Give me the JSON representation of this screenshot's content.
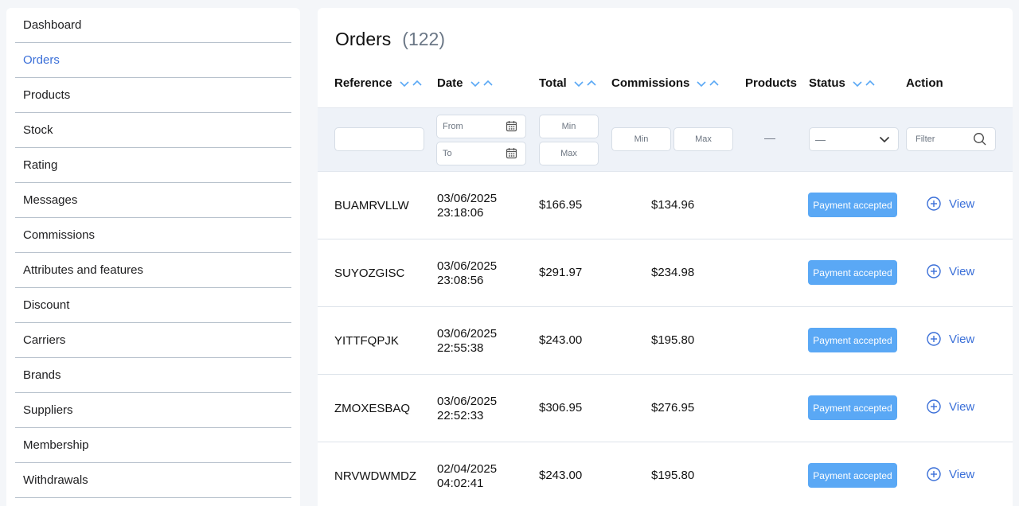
{
  "sidebar": {
    "items": [
      {
        "label": "Dashboard"
      },
      {
        "label": "Orders",
        "active": true
      },
      {
        "label": "Products"
      },
      {
        "label": "Stock"
      },
      {
        "label": "Rating"
      },
      {
        "label": "Messages"
      },
      {
        "label": "Commissions"
      },
      {
        "label": "Attributes and features"
      },
      {
        "label": "Discount"
      },
      {
        "label": "Carriers"
      },
      {
        "label": "Brands"
      },
      {
        "label": "Suppliers"
      },
      {
        "label": "Membership"
      },
      {
        "label": "Withdrawals"
      }
    ]
  },
  "orders": {
    "title": "Orders",
    "count": "(122)",
    "columns": {
      "reference": "Reference",
      "date": "Date",
      "total": "Total",
      "commissions": "Commissions",
      "products": "Products",
      "status": "Status",
      "action": "Action"
    },
    "filters": {
      "reference_value": "",
      "date_from_placeholder": "From",
      "date_to_placeholder": "To",
      "total_min": "Min",
      "total_max": "Max",
      "commissions_min": "Min",
      "commissions_max": "Max",
      "products_placeholder": "—",
      "status_selected": "—",
      "action_filter": "Filter"
    },
    "view_label": "View",
    "rows": [
      {
        "reference": "BUAMRVLLW",
        "date": "03/06/2025",
        "time": "23:18:06",
        "total": "$166.95",
        "commissions": "$134.96",
        "status": "Payment accepted"
      },
      {
        "reference": "SUYOZGISC",
        "date": "03/06/2025",
        "time": "23:08:56",
        "total": "$291.97",
        "commissions": "$234.98",
        "status": "Payment accepted"
      },
      {
        "reference": "YITTFQPJK",
        "date": "03/06/2025",
        "time": "22:55:38",
        "total": "$243.00",
        "commissions": "$195.80",
        "status": "Payment accepted"
      },
      {
        "reference": "ZMOXESBAQ",
        "date": "03/06/2025",
        "time": "22:52:33",
        "total": "$306.95",
        "commissions": "$276.95",
        "status": "Payment accepted"
      },
      {
        "reference": "NRVWDWMDZ",
        "date": "02/04/2025",
        "time": "04:02:41",
        "total": "$243.00",
        "commissions": "$195.80",
        "status": "Payment accepted"
      }
    ]
  },
  "colors": {
    "accent": "#3a6fd8",
    "badge": "#5aa8f5",
    "sort_arrow": "#5aa8f5"
  },
  "icons": {
    "sort": "chevron-down-up-icon",
    "calendar": "calendar-icon",
    "dropdown": "chevron-down-icon",
    "search": "search-icon",
    "view": "plus-circle-icon"
  }
}
